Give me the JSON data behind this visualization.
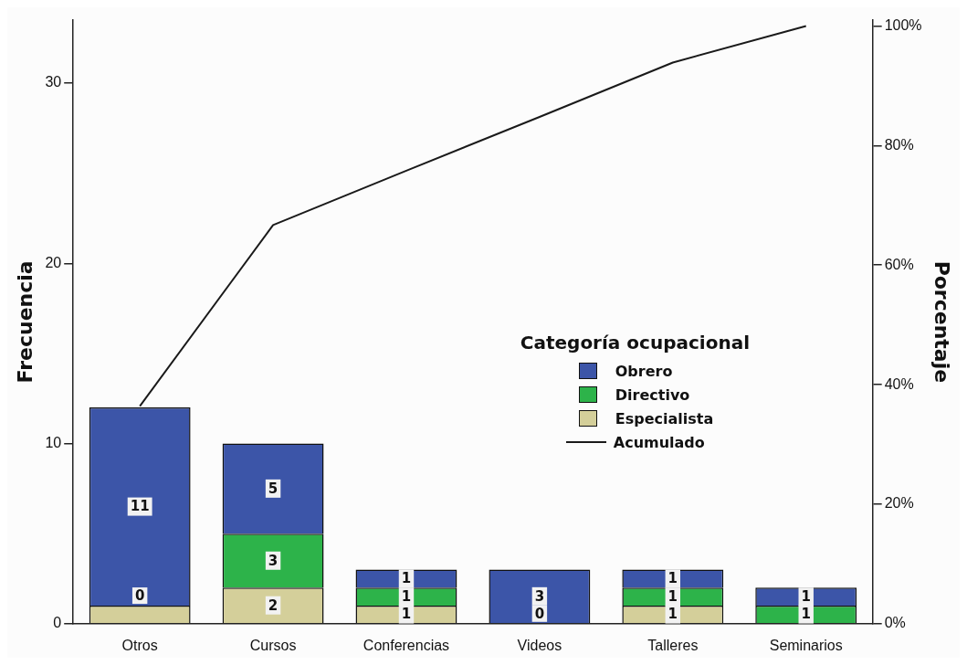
{
  "chart_data": {
    "type": "bar",
    "stacked": true,
    "categories": [
      "Otros",
      "Cursos",
      "Conferencias",
      "Videos",
      "Talleres",
      "Seminarios"
    ],
    "series": [
      {
        "name": "Especialista",
        "color": "#d4cf9a",
        "values": [
          1,
          2,
          1,
          0,
          1,
          0
        ],
        "value_labels": [
          null,
          "2",
          "1",
          null,
          "1",
          null
        ]
      },
      {
        "name": "Directivo",
        "color": "#2db34a",
        "values": [
          0,
          3,
          1,
          0,
          1,
          1
        ],
        "value_labels": [
          null,
          "3",
          "1",
          null,
          "1",
          "1"
        ]
      },
      {
        "name": "Obrero",
        "color": "#3c55a8",
        "values": [
          11,
          5,
          1,
          3,
          1,
          1
        ],
        "value_labels": [
          "11",
          "5",
          "1",
          "3",
          "1",
          "1"
        ]
      },
      {
        "name": "Acumulado",
        "type": "line",
        "axis": "y2",
        "color": "#1a1a1a",
        "values": [
          36.4,
          66.7,
          75.8,
          84.8,
          93.9,
          100
        ]
      }
    ],
    "annotations": [
      {
        "text": "0",
        "x": "Otros",
        "y": 1
      },
      {
        "text": "0",
        "x": "Videos",
        "y": 0
      }
    ],
    "ylabel": "Frecuencia",
    "y2label": "Porcentaje",
    "legend_title": "Categoría ocupacional",
    "ylim": [
      0,
      33.5
    ],
    "yticks": [
      0,
      10,
      20,
      30
    ],
    "y2lim": [
      0,
      101
    ],
    "y2ticks": [
      {
        "value": 0,
        "label": "0%"
      },
      {
        "value": 20,
        "label": "20%"
      },
      {
        "value": 40,
        "label": "40%"
      },
      {
        "value": 60,
        "label": "60%"
      },
      {
        "value": 80,
        "label": "80%"
      },
      {
        "value": 100,
        "label": "100%"
      }
    ],
    "legend": "right",
    "marker": "none",
    "line_style": "solid"
  }
}
